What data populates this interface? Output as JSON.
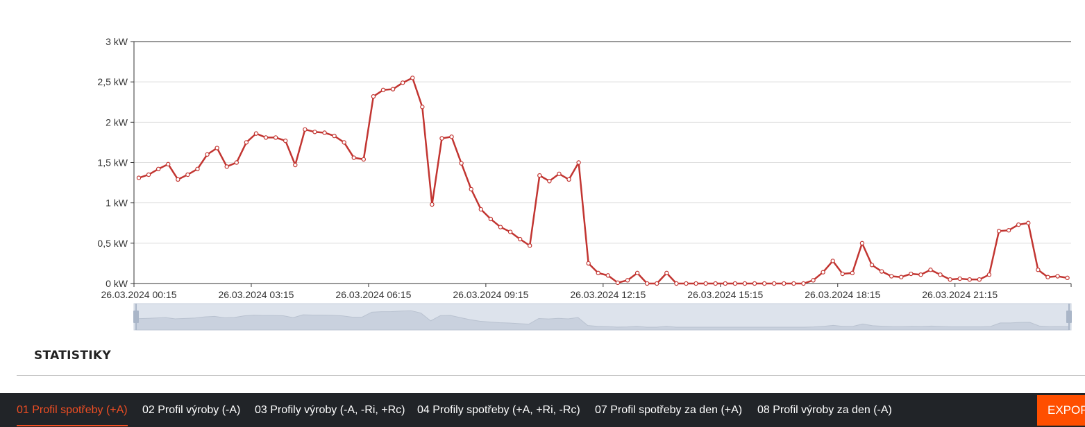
{
  "chart_data": {
    "type": "line",
    "title": "",
    "ylabel": "",
    "unit": "kW",
    "ylim": [
      0,
      3
    ],
    "yticks": [
      "0 kW",
      "0,5 kW",
      "1 kW",
      "1,5 kW",
      "2 kW",
      "2,5 kW",
      "3 kW"
    ],
    "xtick_labels": [
      "26.03.2024 00:15",
      "26.03.2024 03:15",
      "26.03.2024 06:15",
      "26.03.2024 09:15",
      "26.03.2024 12:15",
      "26.03.2024 15:15",
      "26.03.2024 18:15",
      "26.03.2024 21:15"
    ],
    "interval_minutes": 15,
    "series": [
      {
        "name": "01 Profil spotřeby (+A)",
        "color": "#c23531",
        "values": [
          1.31,
          1.35,
          1.42,
          1.48,
          1.29,
          1.35,
          1.42,
          1.6,
          1.68,
          1.45,
          1.5,
          1.75,
          1.86,
          1.81,
          1.81,
          1.77,
          1.47,
          1.91,
          1.88,
          1.87,
          1.83,
          1.75,
          1.56,
          1.54,
          2.32,
          2.4,
          2.41,
          2.49,
          2.55,
          2.19,
          0.98,
          1.8,
          1.82,
          1.49,
          1.17,
          0.92,
          0.8,
          0.7,
          0.64,
          0.55,
          0.47,
          1.34,
          1.27,
          1.36,
          1.29,
          1.5,
          0.25,
          0.13,
          0.1,
          0.01,
          0.04,
          0.13,
          0,
          0,
          0.13,
          0,
          0,
          0,
          0,
          0,
          0,
          0,
          0,
          0,
          0,
          0,
          0,
          0,
          0,
          0.04,
          0.14,
          0.28,
          0.12,
          0.13,
          0.5,
          0.23,
          0.15,
          0.09,
          0.08,
          0.12,
          0.11,
          0.17,
          0.11,
          0.05,
          0.06,
          0.05,
          0.05,
          0.11,
          0.65,
          0.66,
          0.73,
          0.75,
          0.17,
          0.08,
          0.09,
          0.07
        ]
      }
    ],
    "grid": true
  },
  "statistics": {
    "title": "STATISTIKY"
  },
  "tabs": [
    {
      "label": "01 Profil spotřeby (+A)",
      "active": true
    },
    {
      "label": "02 Profil výroby (-A)"
    },
    {
      "label": "03 Profily výroby (-A, -Ri, +Rc)"
    },
    {
      "label": "04 Profily spotřeby (+A, +Ri, -Rc)"
    },
    {
      "label": "07 Profil spotřeby za den (+A)"
    },
    {
      "label": "08 Profil výroby za den (-A)"
    }
  ],
  "export_label": "EXPORT",
  "colors": {
    "accent": "#f04e23",
    "navbar": "#212428",
    "line": "#c23531"
  }
}
